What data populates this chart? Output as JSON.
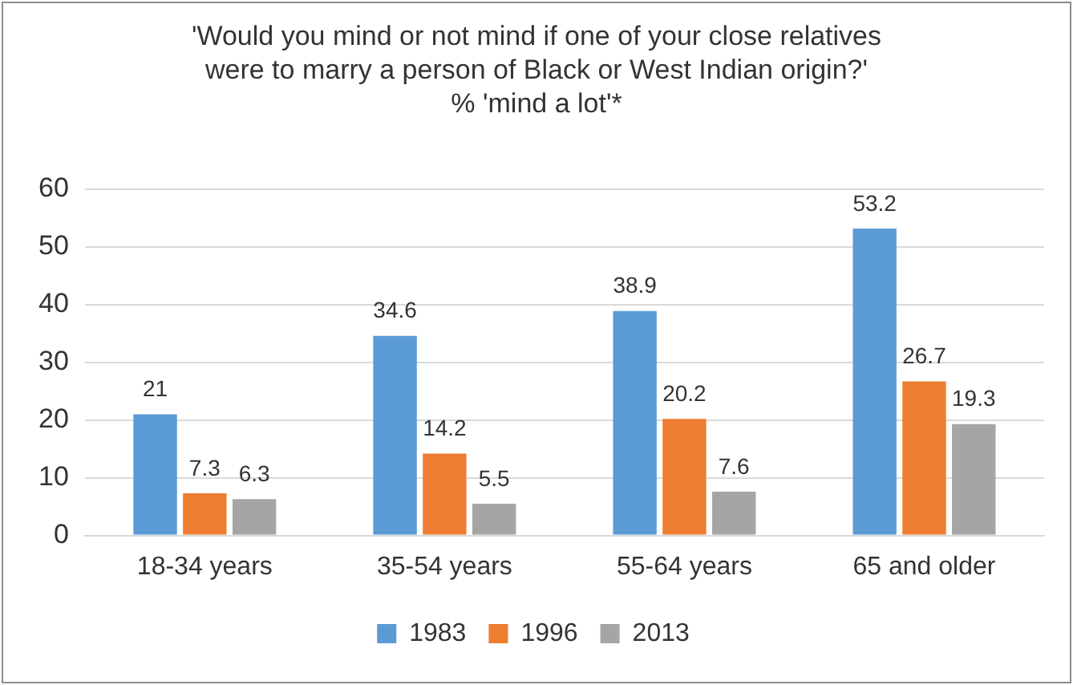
{
  "chart_data": {
    "type": "bar",
    "title": "'Would you mind or not mind if one of your close relatives were to marry a person of Black or West Indian origin?'",
    "subtitle": "% 'mind a lot'*",
    "categories": [
      "18-34 years",
      "35-54 years",
      "55-64 years",
      "65 and older"
    ],
    "series": [
      {
        "name": "1983",
        "color": "#5b9bd5",
        "values": [
          21,
          34.6,
          38.9,
          53.2
        ]
      },
      {
        "name": "1996",
        "color": "#ed7d31",
        "values": [
          7.3,
          14.2,
          20.2,
          26.7
        ]
      },
      {
        "name": "2013",
        "color": "#a5a5a5",
        "values": [
          6.3,
          5.5,
          7.6,
          19.3
        ]
      }
    ],
    "ylim": [
      0,
      60
    ],
    "yticks": [
      0,
      10,
      20,
      30,
      40,
      50,
      60
    ],
    "grid": "y",
    "legend": "bottom",
    "data_labels": true
  }
}
